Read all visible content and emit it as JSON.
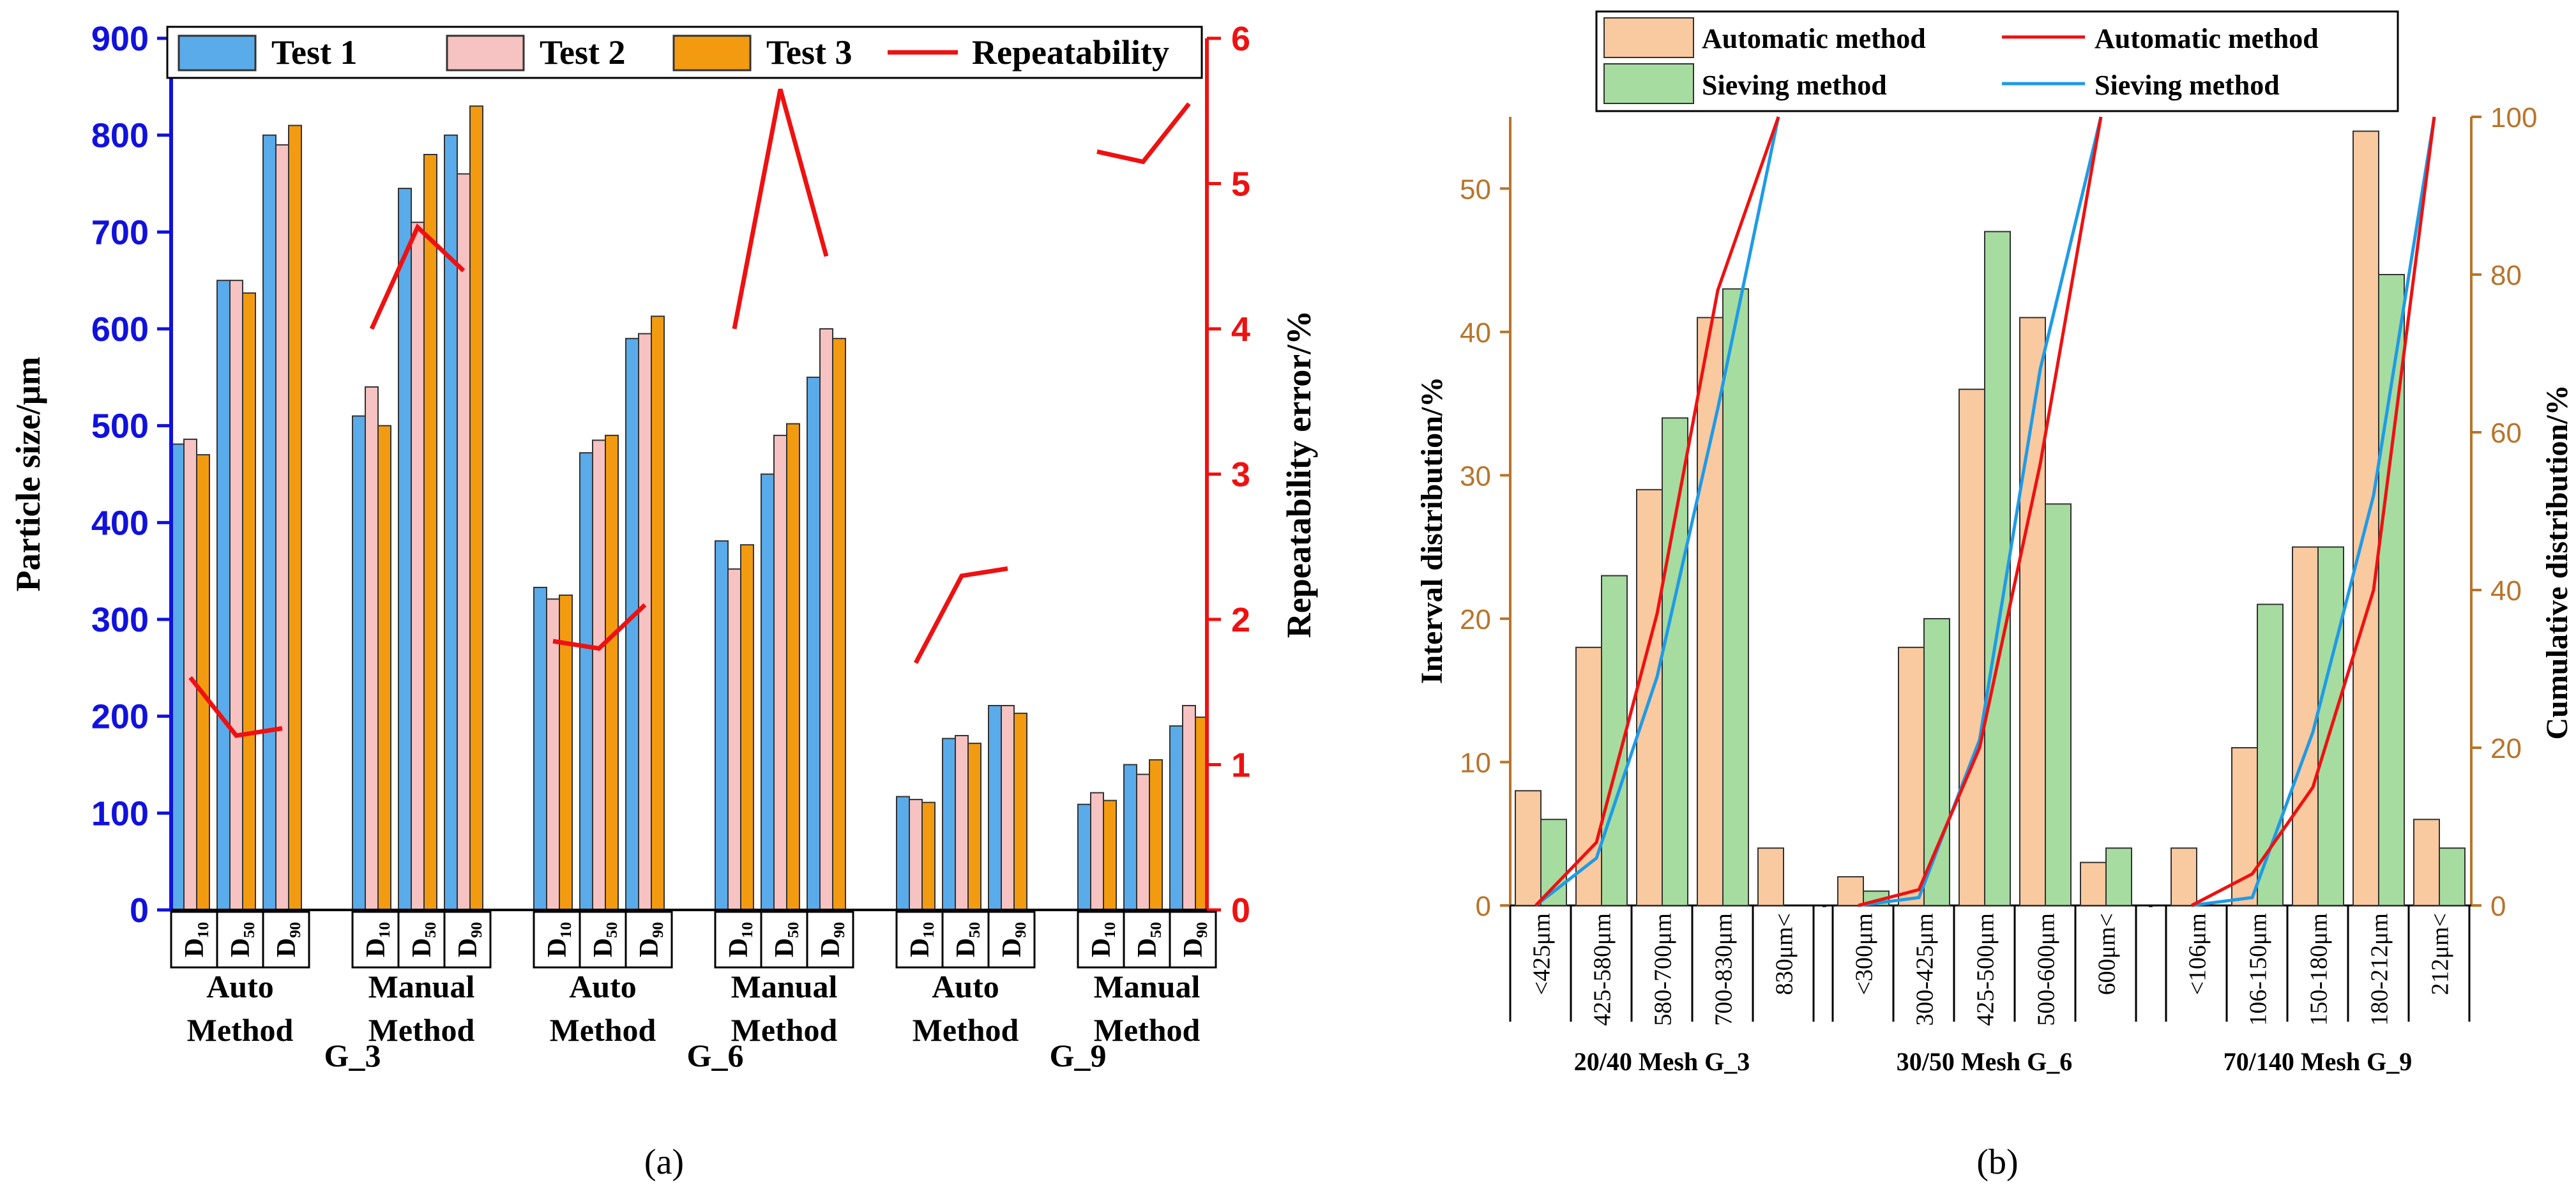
{
  "chart_data": [
    {
      "panel": "(a)",
      "type": "bar",
      "title": "",
      "ylabel": "Particle size/μm",
      "y2label": "Repeatability error/%",
      "ylim": [
        0,
        900
      ],
      "y2lim": [
        0,
        6
      ],
      "yticks": [
        0,
        100,
        200,
        300,
        400,
        500,
        600,
        700,
        800,
        900
      ],
      "y2ticks": [
        0,
        1,
        2,
        3,
        4,
        5,
        6
      ],
      "legend_position": "top",
      "legend": [
        "Test 1",
        "Test 2",
        "Test 3",
        "Repeatability"
      ],
      "colors": {
        "test1": "#5aabea",
        "test2": "#f6c2c2",
        "test3": "#f39b10",
        "repeat": "#ee1111",
        "leftAxis": "#1111dd",
        "rightAxis": "#ee1111"
      },
      "sublabels": [
        "D₁₀",
        "D₅₀",
        "D₉₀"
      ],
      "groups": [
        {
          "line1": "Auto",
          "line2": "Method",
          "sample": "G_3",
          "test1": [
            481,
            650,
            800
          ],
          "test2": [
            486,
            650,
            790
          ],
          "test3": [
            470,
            637,
            810
          ],
          "repeat": [
            1.6,
            1.2,
            1.25
          ]
        },
        {
          "line1": "Manual",
          "line2": "Method",
          "sample": "",
          "test1": [
            510,
            745,
            800
          ],
          "test2": [
            540,
            710,
            760
          ],
          "test3": [
            500,
            780,
            830
          ],
          "repeat": [
            4.0,
            4.7,
            4.4
          ]
        },
        {
          "line1": "Auto",
          "line2": "Method",
          "sample": "G_6",
          "test1": [
            333,
            472,
            590
          ],
          "test2": [
            321,
            485,
            595
          ],
          "test3": [
            325,
            490,
            613
          ],
          "repeat": [
            1.85,
            1.8,
            2.1
          ]
        },
        {
          "line1": "Manual",
          "line2": "Method",
          "sample": "",
          "test1": [
            381,
            450,
            550
          ],
          "test2": [
            352,
            490,
            600
          ],
          "test3": [
            377,
            502,
            590
          ],
          "repeat": [
            4.0,
            5.65,
            4.5
          ]
        },
        {
          "line1": "Auto",
          "line2": "Method",
          "sample": "G_9",
          "test1": [
            117,
            177,
            211
          ],
          "test2": [
            114,
            180,
            211
          ],
          "test3": [
            111,
            172,
            203
          ],
          "repeat": [
            1.7,
            2.3,
            2.35
          ]
        },
        {
          "line1": "Manual",
          "line2": "Method",
          "sample": "",
          "test1": [
            109,
            150,
            190
          ],
          "test2": [
            121,
            140,
            211
          ],
          "test3": [
            113,
            155,
            199
          ],
          "repeat": [
            5.22,
            5.15,
            5.55
          ]
        }
      ]
    },
    {
      "panel": "(b)",
      "type": "bar",
      "title": "",
      "ylabel": "Interval distribution/%",
      "y2label": "Cumulative distribution/%",
      "ylim": [
        0,
        55
      ],
      "y2lim": [
        0,
        100
      ],
      "yticks": [
        0,
        10,
        20,
        30,
        40,
        50
      ],
      "y2ticks": [
        0,
        20,
        40,
        60,
        80,
        100
      ],
      "legend_position": "top",
      "legend": {
        "bar_auto": "Automatic method",
        "line_auto": "Automatic method",
        "bar_sieve": "Sieving      method",
        "line_sieve": "Sieving      method"
      },
      "colors": {
        "auto_bar": "#f9c9a0",
        "sieve_bar": "#a6dca0",
        "auto_line": "#ee1111",
        "sieve_line": "#1e9be6",
        "axis": "#b8742a"
      },
      "groups": [
        {
          "label": "20/40 Mesh G_3",
          "categories": [
            "<425μm",
            "425-580μm",
            "580-700μm",
            "700-830μm",
            "830μm<"
          ],
          "auto": [
            8,
            18,
            29,
            41,
            4
          ],
          "sieve": [
            6,
            23,
            34,
            43,
            null
          ],
          "auto_cum": [
            0,
            8,
            37,
            78,
            100
          ],
          "sieve_cum": [
            0,
            6,
            29,
            63,
            100
          ]
        },
        {
          "label": "30/50 Mesh G_6",
          "categories": [
            "<300μm",
            "300-425μm",
            "425-500μm",
            "500-600μm",
            "600μm<"
          ],
          "auto": [
            2,
            18,
            36,
            41,
            3
          ],
          "sieve": [
            1,
            20,
            47,
            28,
            4
          ],
          "auto_cum": [
            0,
            2,
            20,
            56,
            100
          ],
          "sieve_cum": [
            0,
            1,
            21,
            68,
            100
          ]
        },
        {
          "label": "70/140 Mesh G_9",
          "categories": [
            "<106μm",
            "106-150μm",
            "150-180μm",
            "180-212μm",
            "212μm<"
          ],
          "auto": [
            4,
            11,
            25,
            54,
            6
          ],
          "sieve": [
            null,
            21,
            25,
            44,
            4
          ],
          "auto_cum": [
            0,
            4,
            15,
            40,
            100
          ],
          "sieve_cum": [
            0,
            1,
            22,
            52,
            100
          ]
        }
      ]
    }
  ],
  "panel_labels": {
    "a": "(a)",
    "b": "(b)"
  }
}
